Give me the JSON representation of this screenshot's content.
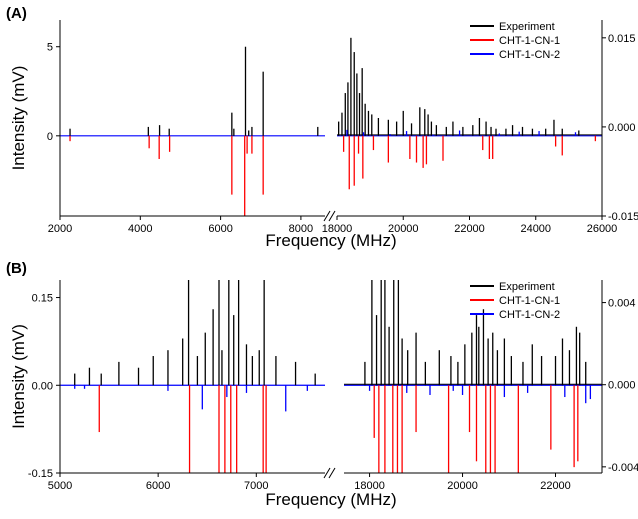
{
  "chart_data": [
    {
      "panel_label": "(A)",
      "type": "line",
      "xlabel": "Frequency (MHz)",
      "ylabel": "Intensity (mV)",
      "x_break": [
        8600,
        18000
      ],
      "xlim_left": [
        2000,
        8600
      ],
      "xlim_right": [
        18000,
        26000
      ],
      "xticks": [
        2000,
        4000,
        6000,
        8000,
        18000,
        20000,
        22000,
        24000,
        26000
      ],
      "ylim": [
        -4.5,
        6.5
      ],
      "yticks": [
        0,
        5
      ],
      "ylim_right": [
        -0.015,
        0.018
      ],
      "yticks_right": [
        "-0.015",
        "0.000",
        "0.015"
      ],
      "legend_position": "top-right",
      "series": [
        {
          "name": "Experiment",
          "color": "#000000",
          "axis": "left",
          "x": [
            2250,
            4200,
            4480,
            4720,
            6280,
            6330,
            6620,
            6700,
            6780,
            7060,
            8420,
            18050,
            18150,
            18250,
            18330,
            18420,
            18520,
            18600,
            18680,
            18760,
            18850,
            18950,
            19050,
            19250,
            19550,
            19800,
            20000,
            20250,
            20500,
            20650,
            20750,
            20850,
            21000,
            21300,
            21500,
            21800,
            22100,
            22300,
            22500,
            22650,
            22800,
            23100,
            23300,
            23600,
            23900,
            24300,
            24550,
            24800,
            25300
          ],
          "values": [
            0.4,
            0.5,
            0.6,
            0.4,
            1.3,
            0.4,
            5.0,
            0.3,
            0.5,
            3.6,
            0.5,
            0.8,
            1.3,
            2.4,
            3.0,
            5.5,
            4.7,
            3.5,
            2.4,
            3.8,
            1.8,
            1.4,
            1.2,
            1.0,
            0.9,
            0.8,
            1.4,
            0.7,
            1.6,
            1.5,
            1.2,
            0.8,
            0.6,
            0.5,
            0.8,
            0.5,
            0.6,
            1.0,
            0.8,
            0.5,
            0.4,
            0.4,
            0.6,
            0.5,
            0.4,
            0.4,
            0.9,
            0.4,
            0.3
          ]
        },
        {
          "name": "CHT-1-CN-1",
          "color": "#ff0000",
          "axis": "left",
          "x": [
            2250,
            4220,
            4470,
            4730,
            6280,
            6600,
            6660,
            6780,
            7060,
            18200,
            18370,
            18520,
            18650,
            18780,
            19100,
            19550,
            20200,
            20400,
            20600,
            20700,
            21200,
            22400,
            22600,
            22700,
            24600,
            24800,
            25800
          ],
          "values": [
            -0.3,
            -0.7,
            -1.3,
            -0.9,
            -3.3,
            -4.5,
            -1.0,
            -1.0,
            -3.3,
            -0.9,
            -3.0,
            -2.8,
            -1.0,
            -2.4,
            -0.8,
            -1.5,
            -1.3,
            -1.5,
            -1.8,
            -1.6,
            -1.4,
            -0.8,
            -1.3,
            -1.3,
            -0.6,
            -1.1,
            -0.3
          ]
        },
        {
          "name": "CHT-1-CN-2",
          "color": "#0000ff",
          "axis": "right",
          "x": [
            18300,
            18800,
            19600,
            20100,
            20900,
            21700,
            22900,
            23500,
            24100,
            25200
          ],
          "values": [
            -0.0005,
            -0.0009,
            -0.0012,
            -0.0007,
            -0.0013,
            -0.0006,
            -0.0011,
            -0.0008,
            -0.0007,
            -0.0009
          ]
        }
      ]
    },
    {
      "panel_label": "(B)",
      "type": "line",
      "xlabel": "Frequency (MHz)",
      "ylabel": "Intensity (mV)",
      "x_break": [
        7700,
        17450
      ],
      "xlim_left": [
        5000,
        7700
      ],
      "xlim_right": [
        17450,
        23000
      ],
      "xticks": [
        5000,
        6000,
        7000,
        18000,
        20000,
        22000
      ],
      "ylim": [
        -0.15,
        0.18
      ],
      "yticks": [
        -0.15,
        0.0,
        0.15
      ],
      "ylim_right": [
        -0.0043,
        0.0051
      ],
      "yticks_right": [
        "-0.004",
        "0.000",
        "0.004"
      ],
      "legend_position": "top-right",
      "series": [
        {
          "name": "Experiment",
          "color": "#000000",
          "axis": "left",
          "x": [
            5150,
            5300,
            5420,
            5600,
            5800,
            5950,
            6100,
            6250,
            6310,
            6400,
            6480,
            6560,
            6620,
            6650,
            6720,
            6770,
            6820,
            6900,
            6960,
            7030,
            7080,
            7200,
            7400,
            7600,
            17900,
            18050,
            18150,
            18250,
            18330,
            18420,
            18520,
            18620,
            18700,
            18820,
            19000,
            19200,
            19500,
            19750,
            19900,
            20050,
            20200,
            20300,
            20350,
            20450,
            20550,
            20650,
            20750,
            20900,
            21050,
            21300,
            21500,
            21700,
            22000,
            22150,
            22300,
            22450,
            22520,
            22650
          ],
          "values": [
            0.02,
            0.03,
            0.02,
            0.04,
            0.03,
            0.05,
            0.06,
            0.08,
            0.18,
            0.05,
            0.09,
            0.13,
            0.18,
            0.06,
            0.18,
            0.12,
            0.18,
            0.07,
            0.05,
            0.06,
            0.18,
            0.05,
            0.04,
            0.02,
            0.04,
            0.18,
            0.12,
            0.18,
            0.18,
            0.1,
            0.18,
            0.18,
            0.08,
            0.06,
            0.09,
            0.04,
            0.06,
            0.05,
            0.04,
            0.07,
            0.09,
            0.12,
            0.1,
            0.13,
            0.08,
            0.09,
            0.06,
            0.08,
            0.05,
            0.04,
            0.07,
            0.05,
            0.05,
            0.08,
            0.06,
            0.1,
            0.09,
            0.04
          ]
        },
        {
          "name": "CHT-1-CN-1",
          "color": "#ff0000",
          "axis": "left",
          "x": [
            5400,
            6320,
            6620,
            6680,
            6740,
            6800,
            7070,
            7100,
            18100,
            18200,
            18330,
            18500,
            18600,
            18700,
            19000,
            19700,
            20150,
            20300,
            20500,
            20600,
            20700,
            21200,
            21900,
            22400,
            22480
          ],
          "values": [
            -0.08,
            -0.15,
            -0.15,
            -0.15,
            -0.15,
            -0.15,
            -0.15,
            -0.15,
            -0.09,
            -0.15,
            -0.15,
            -0.15,
            -0.15,
            -0.15,
            -0.08,
            -0.15,
            -0.08,
            -0.13,
            -0.15,
            -0.15,
            -0.15,
            -0.15,
            -0.11,
            -0.14,
            -0.13
          ]
        },
        {
          "name": "CHT-1-CN-2",
          "color": "#0000ff",
          "axis": "right",
          "x": [
            5150,
            5250,
            6100,
            6450,
            6700,
            6900,
            7300,
            7520,
            18000,
            18800,
            19300,
            19800,
            20000,
            20900,
            21400,
            22200,
            22650,
            22750
          ],
          "values": [
            -0.0002,
            -0.0002,
            -0.0003,
            -0.0012,
            -0.0006,
            -0.0004,
            -0.0013,
            -0.0003,
            -0.0003,
            -0.0004,
            -0.0005,
            -0.0003,
            -0.0005,
            -0.0006,
            -0.0004,
            -0.0006,
            -0.0009,
            -0.0007
          ]
        }
      ]
    }
  ]
}
